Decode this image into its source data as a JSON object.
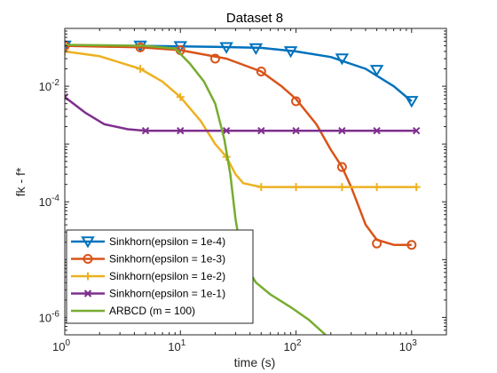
{
  "chart_data": {
    "type": "line",
    "title": "Dataset 8",
    "xlabel": "time (s)",
    "ylabel": "fk - f*",
    "xscale": "log",
    "yscale": "log",
    "xlim": [
      1,
      2000
    ],
    "ylim": [
      5e-07,
      0.1
    ],
    "x_ticks": [
      {
        "value": 1,
        "base": "10",
        "exp": "0"
      },
      {
        "value": 10,
        "base": "10",
        "exp": "1"
      },
      {
        "value": 100,
        "base": "10",
        "exp": "2"
      },
      {
        "value": 1000,
        "base": "10",
        "exp": "3"
      }
    ],
    "y_ticks": [
      {
        "value": 1e-06,
        "base": "10",
        "exp": "-6"
      },
      {
        "value": 0.0001,
        "base": "10",
        "exp": "-4"
      },
      {
        "value": 0.01,
        "base": "10",
        "exp": "-2"
      }
    ],
    "grid": false,
    "legend_position": "bottom-left",
    "series": [
      {
        "name": "Sinkhorn(epsilon = 1e-4)",
        "color": "#0072BD",
        "marker": "triangle-down",
        "points": [
          [
            1,
            0.05
          ],
          [
            4.5,
            0.05
          ],
          [
            20,
            0.048
          ],
          [
            50,
            0.046
          ],
          [
            100,
            0.04
          ],
          [
            200,
            0.032
          ],
          [
            400,
            0.02
          ],
          [
            700,
            0.01
          ],
          [
            1000,
            0.0055
          ]
        ],
        "marker_points": [
          [
            1,
            0.05
          ],
          [
            4.5,
            0.05
          ],
          [
            10,
            0.049
          ],
          [
            25,
            0.047
          ],
          [
            45,
            0.045
          ],
          [
            90,
            0.04
          ],
          [
            250,
            0.03
          ],
          [
            500,
            0.019
          ],
          [
            1000,
            0.0055
          ]
        ]
      },
      {
        "name": "Sinkhorn(epsilon = 1e-3)",
        "color": "#D95319",
        "marker": "circle",
        "points": [
          [
            1,
            0.05
          ],
          [
            4.5,
            0.047
          ],
          [
            10,
            0.042
          ],
          [
            25,
            0.03
          ],
          [
            50,
            0.018
          ],
          [
            75,
            0.01
          ],
          [
            100,
            0.006
          ],
          [
            150,
            0.0022
          ],
          [
            200,
            0.0008
          ],
          [
            250,
            0.0004
          ],
          [
            300,
            0.00018
          ],
          [
            400,
            4e-05
          ],
          [
            500,
            2.2e-05
          ],
          [
            700,
            1.8e-05
          ],
          [
            1000,
            1.8e-05
          ]
        ],
        "marker_points": [
          [
            1,
            0.05
          ],
          [
            4.5,
            0.047
          ],
          [
            10,
            0.042
          ],
          [
            20,
            0.03
          ],
          [
            50,
            0.018
          ],
          [
            100,
            0.0055
          ],
          [
            250,
            0.0004
          ],
          [
            500,
            1.9e-05
          ],
          [
            1000,
            1.8e-05
          ]
        ]
      },
      {
        "name": "Sinkhorn(epsilon = 1e-2)",
        "color": "#EDB120",
        "marker": "plus",
        "points": [
          [
            1,
            0.04
          ],
          [
            2,
            0.033
          ],
          [
            4.5,
            0.02
          ],
          [
            7,
            0.012
          ],
          [
            10,
            0.0065
          ],
          [
            15,
            0.0025
          ],
          [
            20,
            0.001
          ],
          [
            25,
            0.0006
          ],
          [
            30,
            0.0003
          ],
          [
            35,
            0.00021
          ],
          [
            50,
            0.00018
          ],
          [
            100,
            0.00018
          ],
          [
            1100,
            0.00018
          ]
        ],
        "marker_points": [
          [
            1,
            0.04
          ],
          [
            4.5,
            0.02
          ],
          [
            10,
            0.0065
          ],
          [
            25,
            0.0006
          ],
          [
            50,
            0.00018
          ],
          [
            100,
            0.00018
          ],
          [
            250,
            0.00018
          ],
          [
            500,
            0.00018
          ],
          [
            1100,
            0.00018
          ]
        ]
      },
      {
        "name": "Sinkhorn(epsilon = 1e-1)",
        "color": "#7E2F8E",
        "marker": "cross",
        "points": [
          [
            1,
            0.0065
          ],
          [
            1.5,
            0.0035
          ],
          [
            2.2,
            0.0022
          ],
          [
            3.5,
            0.0018
          ],
          [
            5,
            0.0017
          ],
          [
            1100,
            0.0017
          ]
        ],
        "marker_points": [
          [
            1,
            0.0065
          ],
          [
            5,
            0.0017
          ],
          [
            10,
            0.0017
          ],
          [
            25,
            0.0017
          ],
          [
            50,
            0.0017
          ],
          [
            100,
            0.0017
          ],
          [
            250,
            0.0017
          ],
          [
            500,
            0.0017
          ],
          [
            1100,
            0.0017
          ]
        ]
      },
      {
        "name": "ARBCD (m = 100)",
        "color": "#77AC30",
        "marker": "none",
        "points": [
          [
            1,
            0.052
          ],
          [
            5,
            0.05
          ],
          [
            9,
            0.045
          ],
          [
            12,
            0.025
          ],
          [
            16,
            0.012
          ],
          [
            20,
            0.005
          ],
          [
            24,
            0.0012
          ],
          [
            27,
            0.0003
          ],
          [
            30,
            5e-05
          ],
          [
            33,
            1.6e-05
          ],
          [
            38,
            7e-06
          ],
          [
            45,
            4e-06
          ],
          [
            60,
            2.5e-06
          ],
          [
            90,
            1.5e-06
          ],
          [
            130,
            9e-07
          ],
          [
            180,
            5e-07
          ]
        ],
        "marker_points": []
      }
    ]
  }
}
